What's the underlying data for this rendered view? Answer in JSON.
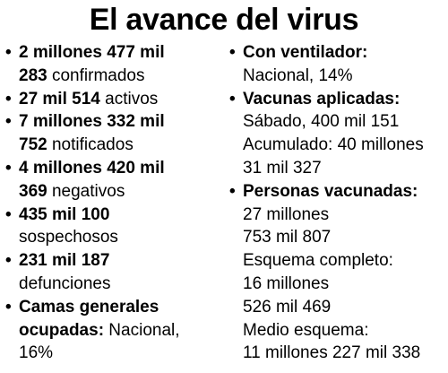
{
  "title": "El avance del virus",
  "left": [
    {
      "bullet": "•",
      "l1_bold": "2 millones 477 mil",
      "l2_bold": "283",
      "l2_rest": " confirmados"
    },
    {
      "bullet": "•",
      "l1_bold": "27 mil 514",
      "l1_rest": " activos"
    },
    {
      "bullet": "•",
      "l1_bold": "7 millones 332 mil",
      "l2_bold": "752",
      "l2_rest": " notificados"
    },
    {
      "bullet": "•",
      "l1_bold": "4 millones 420 mil",
      "l2_bold": "369",
      "l2_rest": " negativos"
    },
    {
      "bullet": "•",
      "l1_bold": "435 mil 100",
      "l2_rest": "sospechosos"
    },
    {
      "bullet": "•",
      "l1_bold": "231 mil 187",
      "l2_rest": "defunciones"
    },
    {
      "bullet": "•",
      "l1_bold": "Camas generales",
      "l2_bold": "ocupadas:",
      "l2_rest": " Nacional,",
      "l3": "16%"
    }
  ],
  "right": {
    "ventilador": {
      "bullet": "•",
      "heading": "Con ventilador:",
      "line": "Nacional, 14%"
    },
    "vacunas": {
      "bullet": "•",
      "heading": "Vacunas aplicadas:",
      "lines": [
        "Sábado, 400 mil 151",
        "Acumulado: 40 millones",
        "31 mil 327"
      ]
    },
    "personas": {
      "bullet": "•",
      "heading": "Personas vacunadas:",
      "lines": [
        "27 millones",
        "753 mil 807",
        "Esquema completo:",
        "16 millones",
        "526 mil 469",
        "Medio esquema:",
        "11 millones 227 mil 338"
      ]
    }
  }
}
